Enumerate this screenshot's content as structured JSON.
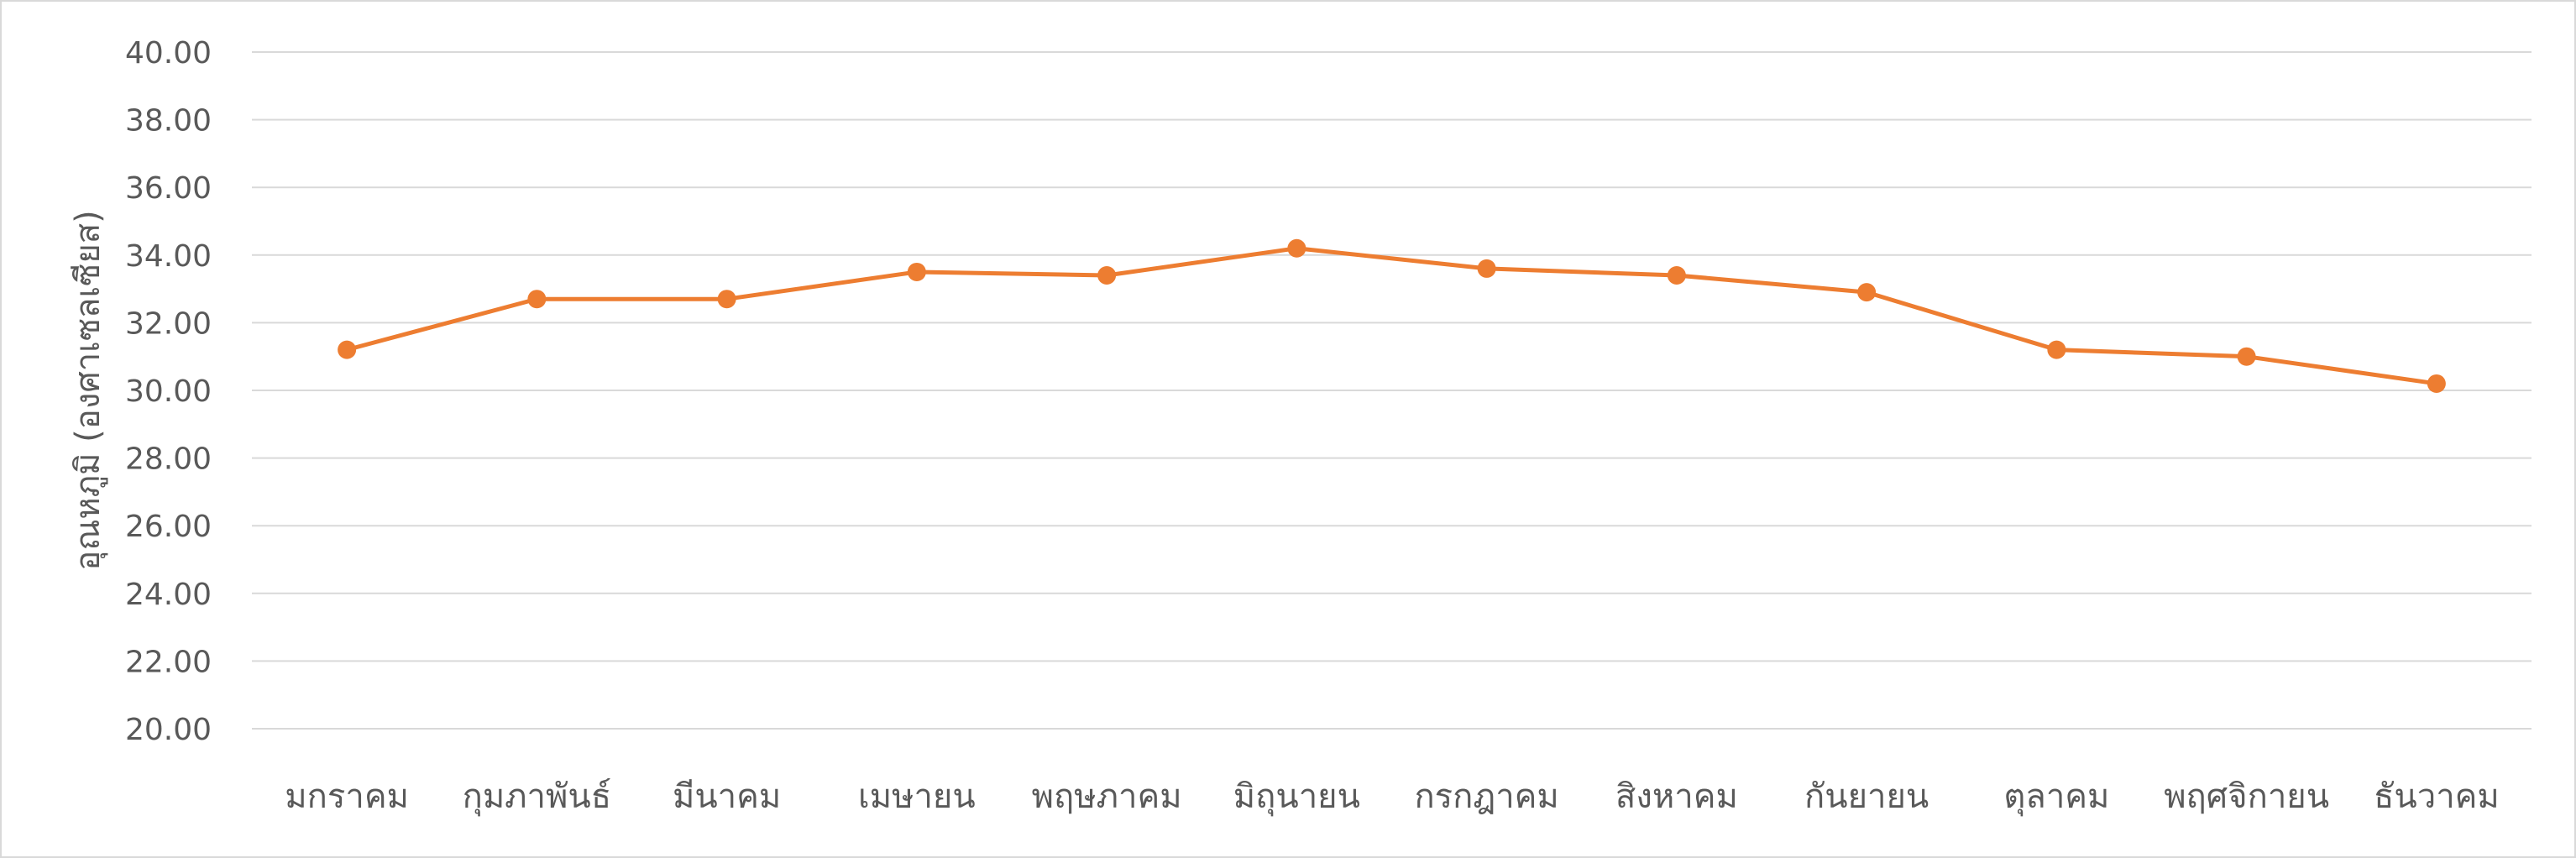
{
  "chart_data": {
    "type": "line",
    "title": "",
    "xlabel": "",
    "ylabel": "อุณหภูมิ (องศาเซลเซียส)",
    "ylim": [
      20,
      40
    ],
    "ystep": 2,
    "yticks": [
      "20.00",
      "22.00",
      "24.00",
      "26.00",
      "28.00",
      "30.00",
      "32.00",
      "34.00",
      "36.00",
      "38.00",
      "40.00"
    ],
    "grid": true,
    "legend": "none",
    "categories": [
      "มกราคม",
      "กุมภาพันธ์",
      "มีนาคม",
      "เมษายน",
      "พฤษภาคม",
      "มิถุนายน",
      "กรกฎาคม",
      "สิงหาคม",
      "กันยายน",
      "ตุลาคม",
      "พฤศจิกายน",
      "ธันวาคม"
    ],
    "series": [
      {
        "values": [
          31.2,
          32.7,
          32.7,
          33.5,
          33.4,
          34.2,
          33.6,
          33.4,
          32.9,
          31.2,
          31.0,
          30.2
        ],
        "color": "#ED7D31"
      }
    ],
    "colors": {
      "grid": "#d9d9d9",
      "text": "#595959",
      "line": "#ED7D31"
    }
  }
}
